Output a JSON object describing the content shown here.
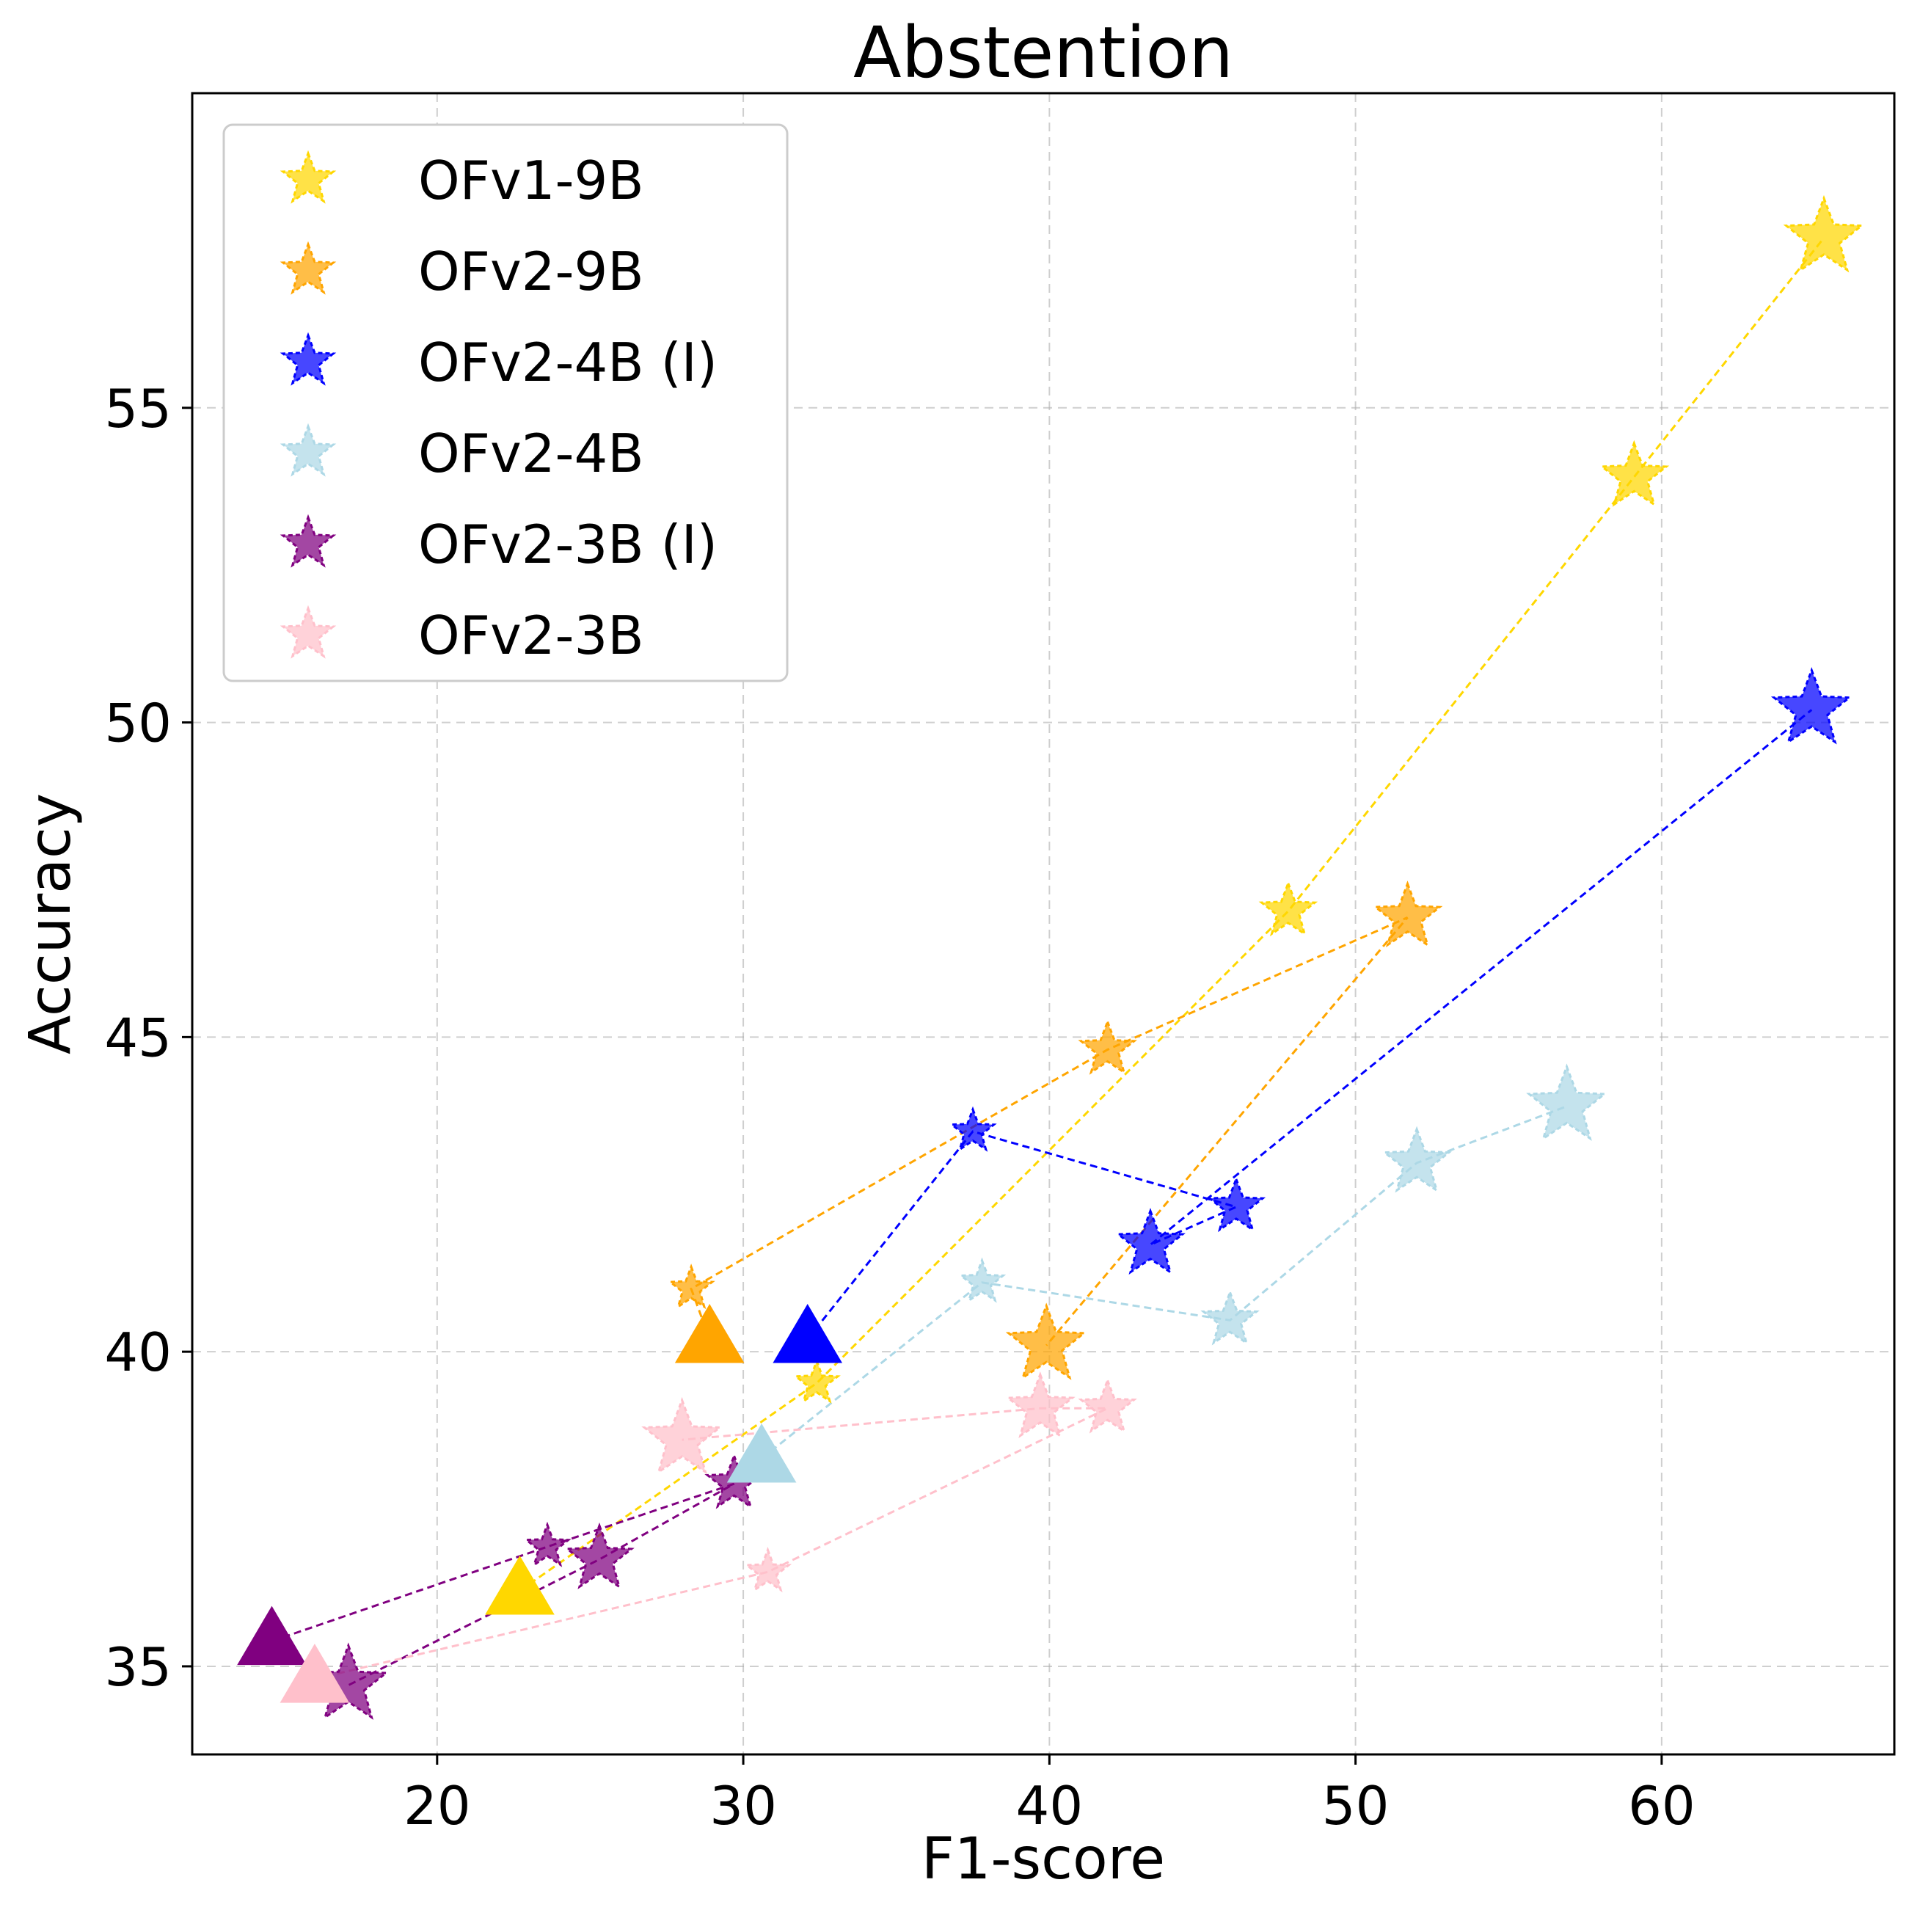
{
  "chart_data": {
    "type": "scatter",
    "title": "Abstention",
    "xlabel": "F1-score",
    "ylabel": "Accuracy",
    "xlim": [
      12.0,
      67.6
    ],
    "ylim": [
      33.6,
      60.0
    ],
    "xticks": [
      20,
      30,
      40,
      50,
      60
    ],
    "yticks": [
      35,
      40,
      45,
      50,
      55
    ],
    "grid": true,
    "legend_position": "upper-left",
    "series": [
      {
        "name": "OFv1-9B",
        "color": "#FFD700",
        "baseline": {
          "x": 22.7,
          "y": 36.2
        },
        "points": [
          {
            "x": 32.4,
            "y": 39.5,
            "size": 1
          },
          {
            "x": 47.8,
            "y": 47.0,
            "size": 2
          },
          {
            "x": 59.1,
            "y": 53.9,
            "size": 3
          },
          {
            "x": 65.3,
            "y": 57.7,
            "size": 4
          }
        ]
      },
      {
        "name": "OFv2-9B",
        "color": "#FFA500",
        "baseline": {
          "x": 28.9,
          "y": 40.2
        },
        "points": [
          {
            "x": 28.3,
            "y": 41.0,
            "size": 1
          },
          {
            "x": 41.9,
            "y": 44.8,
            "size": 2
          },
          {
            "x": 51.7,
            "y": 46.9,
            "size": 3
          },
          {
            "x": 39.9,
            "y": 40.1,
            "size": 4
          }
        ]
      },
      {
        "name": "OFv2-4B (I)",
        "color": "#0000FF",
        "baseline": {
          "x": 32.1,
          "y": 40.2
        },
        "points": [
          {
            "x": 37.5,
            "y": 43.5,
            "size": 1
          },
          {
            "x": 46.1,
            "y": 42.3,
            "size": 2
          },
          {
            "x": 43.3,
            "y": 41.7,
            "size": 3
          },
          {
            "x": 64.9,
            "y": 50.2,
            "size": 4
          }
        ]
      },
      {
        "name": "OFv2-4B",
        "color": "#ADD8E6",
        "baseline": {
          "x": 30.6,
          "y": 38.3
        },
        "points": [
          {
            "x": 37.8,
            "y": 41.1,
            "size": 1
          },
          {
            "x": 45.9,
            "y": 40.5,
            "size": 2
          },
          {
            "x": 52.0,
            "y": 43.0,
            "size": 3
          },
          {
            "x": 56.9,
            "y": 43.9,
            "size": 4
          }
        ]
      },
      {
        "name": "OFv2-3B (I)",
        "color": "#800080",
        "baseline": {
          "x": 14.6,
          "y": 35.4
        },
        "points": [
          {
            "x": 23.6,
            "y": 36.9,
            "size": 1
          },
          {
            "x": 29.7,
            "y": 37.9,
            "size": 2
          },
          {
            "x": 25.3,
            "y": 36.7,
            "size": 3
          },
          {
            "x": 17.1,
            "y": 34.7,
            "size": 4
          }
        ]
      },
      {
        "name": "OFv2-3B",
        "color": "#FFC0CB",
        "baseline": {
          "x": 16.0,
          "y": 34.8
        },
        "points": [
          {
            "x": 30.8,
            "y": 36.5,
            "size": 1
          },
          {
            "x": 41.9,
            "y": 39.1,
            "size": 2
          },
          {
            "x": 39.7,
            "y": 39.1,
            "size": 3
          },
          {
            "x": 28.0,
            "y": 38.6,
            "size": 4
          }
        ]
      }
    ]
  }
}
